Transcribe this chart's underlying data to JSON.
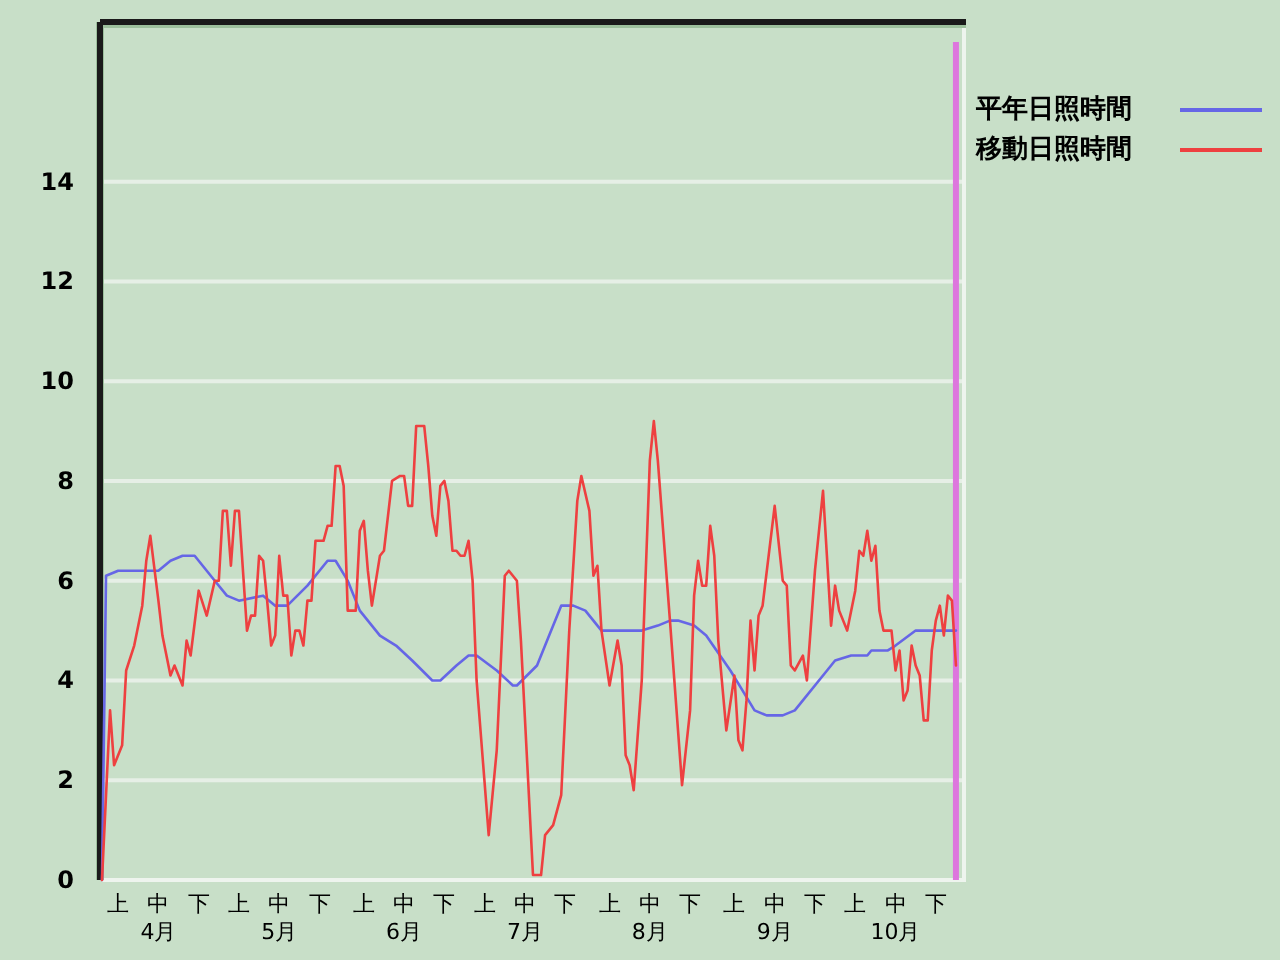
{
  "chart_data": {
    "type": "line",
    "series": [
      {
        "name": "平年日照時間",
        "color": "#6666e6",
        "x": [
          "--03-31",
          "--04-01",
          "--04-04",
          "--04-14",
          "--04-17",
          "--04-20",
          "--04-23",
          "--04-28",
          "--05-01",
          "--05-04",
          "--05-10",
          "--05-13",
          "--05-16",
          "--05-21",
          "--05-26",
          "--05-28",
          "--05-31",
          "--06-03",
          "--06-06",
          "--06-08",
          "--06-12",
          "--06-16",
          "--06-21",
          "--06-23",
          "--06-27",
          "--06-30",
          "--07-02",
          "--07-07",
          "--07-11",
          "--07-12",
          "--07-17",
          "--07-20",
          "--07-23",
          "--07-26",
          "--07-29",
          "--08-02",
          "--08-12",
          "--08-16",
          "--08-19",
          "--08-21",
          "--08-25",
          "--08-28",
          "--09-03",
          "--09-06",
          "--09-09",
          "--09-12",
          "--09-16",
          "--09-19",
          "--09-27",
          "--09-29",
          "--10-03",
          "--10-07",
          "--10-08",
          "--10-12",
          "--10-14",
          "--10-19",
          "--10-29"
        ],
        "values": [
          0,
          6.1,
          6.2,
          6.2,
          6.4,
          6.5,
          6.5,
          6.0,
          5.7,
          5.6,
          5.7,
          5.5,
          5.5,
          5.9,
          6.4,
          6.4,
          6.0,
          5.4,
          5.1,
          4.9,
          4.7,
          4.4,
          4.0,
          4.0,
          4.3,
          4.5,
          4.5,
          4.2,
          3.9,
          3.9,
          4.3,
          4.9,
          5.5,
          5.5,
          5.4,
          5.0,
          5.0,
          5.1,
          5.2,
          5.2,
          5.1,
          4.9,
          4.2,
          3.8,
          3.4,
          3.3,
          3.3,
          3.4,
          4.2,
          4.4,
          4.5,
          4.5,
          4.6,
          4.6,
          4.7,
          5.0,
          5.0
        ]
      },
      {
        "name": "移動日照時間",
        "color": "#ee4040",
        "x": [
          "--03-31",
          "--04-02",
          "--04-03",
          "--04-05",
          "--04-06",
          "--04-08",
          "--04-10",
          "--04-11",
          "--04-12",
          "--04-14",
          "--04-15",
          "--04-17",
          "--04-18",
          "--04-20",
          "--04-21",
          "--04-22",
          "--04-24",
          "--04-26",
          "--04-28",
          "--04-29",
          "--04-30",
          "--05-01",
          "--05-02",
          "--05-03",
          "--05-04",
          "--05-06",
          "--05-07",
          "--05-08",
          "--05-09",
          "--05-10",
          "--05-11",
          "--05-12",
          "--05-13",
          "--05-14",
          "--05-15",
          "--05-16",
          "--05-17",
          "--05-18",
          "--05-19",
          "--05-20",
          "--05-21",
          "--05-22",
          "--05-23",
          "--05-25",
          "--05-26",
          "--05-27",
          "--05-28",
          "--05-29",
          "--05-30",
          "--05-31",
          "--06-02",
          "--06-03",
          "--06-04",
          "--06-05",
          "--06-06",
          "--06-08",
          "--06-09",
          "--06-11",
          "--06-13",
          "--06-14",
          "--06-15",
          "--06-16",
          "--06-17",
          "--06-19",
          "--06-20",
          "--06-21",
          "--06-22",
          "--06-23",
          "--06-24",
          "--06-25",
          "--06-26",
          "--06-27",
          "--06-28",
          "--06-29",
          "--06-30",
          "--07-01",
          "--07-02",
          "--07-05",
          "--07-07",
          "--07-09",
          "--07-10",
          "--07-11",
          "--07-12",
          "--07-13",
          "--07-16",
          "--07-18",
          "--07-19",
          "--07-21",
          "--07-23",
          "--07-25",
          "--07-27",
          "--07-28",
          "--07-30",
          "--07-31",
          "--08-01",
          "--08-02",
          "--08-04",
          "--08-06",
          "--08-07",
          "--08-08",
          "--08-09",
          "--08-10",
          "--08-12",
          "--08-14",
          "--08-15",
          "--08-16",
          "--08-19",
          "--08-22",
          "--08-24",
          "--08-25",
          "--08-26",
          "--08-27",
          "--08-28",
          "--08-29",
          "--08-30",
          "--08-31",
          "--09-02",
          "--09-04",
          "--09-05",
          "--09-06",
          "--09-07",
          "--09-08",
          "--09-09",
          "--09-10",
          "--09-11",
          "--09-14",
          "--09-16",
          "--09-17",
          "--09-18",
          "--09-19",
          "--09-21",
          "--09-22",
          "--09-24",
          "--09-26",
          "--09-28",
          "--09-29",
          "--09-30",
          "--10-02",
          "--10-04",
          "--10-05",
          "--10-06",
          "--10-07",
          "--10-08",
          "--10-09",
          "--10-10",
          "--10-11",
          "--10-13",
          "--10-14",
          "--10-15",
          "--10-16",
          "--10-17",
          "--10-18",
          "--10-19",
          "--10-20",
          "--10-21",
          "--10-22",
          "--10-23",
          "--10-24",
          "--10-25",
          "--10-26",
          "--10-27",
          "--10-28",
          "--10-29"
        ],
        "values": [
          0,
          3.4,
          2.3,
          2.7,
          4.2,
          4.7,
          5.5,
          6.4,
          6.9,
          5.6,
          4.9,
          4.1,
          4.3,
          3.9,
          4.8,
          4.5,
          5.8,
          5.3,
          6.0,
          6.0,
          7.4,
          7.4,
          6.3,
          7.4,
          7.4,
          5.0,
          5.3,
          5.3,
          6.5,
          6.4,
          5.6,
          4.7,
          4.9,
          6.5,
          5.7,
          5.7,
          4.5,
          5.0,
          5.0,
          4.7,
          5.6,
          5.6,
          6.8,
          6.8,
          7.1,
          7.1,
          8.3,
          8.3,
          7.9,
          5.4,
          5.4,
          7.0,
          7.2,
          6.2,
          5.5,
          6.5,
          6.6,
          8.0,
          8.1,
          8.1,
          7.5,
          7.5,
          9.1,
          9.1,
          8.3,
          7.3,
          6.9,
          7.9,
          8.0,
          7.6,
          6.6,
          6.6,
          6.5,
          6.5,
          6.8,
          6.0,
          4.0,
          0.9,
          2.6,
          6.1,
          6.2,
          6.1,
          6.0,
          4.8,
          0.1,
          0.1,
          0.9,
          1.1,
          1.7,
          5.0,
          7.6,
          8.1,
          7.4,
          6.1,
          6.3,
          5.0,
          3.9,
          4.8,
          4.3,
          2.5,
          2.3,
          1.8,
          4.0,
          8.4,
          9.2,
          8.4,
          5.2,
          1.9,
          3.4,
          5.7,
          6.4,
          5.9,
          5.9,
          7.1,
          6.5,
          4.8,
          3.0,
          4.1,
          2.8,
          2.6,
          3.6,
          5.2,
          4.2,
          5.3,
          5.5,
          7.5,
          6.0,
          5.9,
          4.3,
          4.2,
          4.5,
          4.0,
          6.2,
          7.8,
          5.1,
          5.9,
          5.4,
          5.0,
          5.8,
          6.6,
          6.5,
          7.0,
          6.4,
          6.7,
          5.4,
          5.0,
          5.0,
          4.2,
          4.6,
          3.6,
          3.8,
          4.7,
          4.3,
          4.1,
          3.2,
          3.2,
          4.6,
          5.2,
          5.5,
          4.9,
          5.7,
          5.6,
          4.3
        ]
      }
    ],
    "xlim": [
      "--03-31",
      "--10-31"
    ],
    "xticks": [
      {
        "value": "--04-04",
        "label": "上"
      },
      {
        "value": "--04-14",
        "label": "中\n4月"
      },
      {
        "value": "--04-24",
        "label": "下"
      },
      {
        "value": "--05-04",
        "label": "上"
      },
      {
        "value": "--05-14",
        "label": "中\n5月"
      },
      {
        "value": "--05-24",
        "label": "下"
      },
      {
        "value": "--06-04",
        "label": "上"
      },
      {
        "value": "--06-14",
        "label": "中\n6月"
      },
      {
        "value": "--06-24",
        "label": "下"
      },
      {
        "value": "--07-04",
        "label": "上"
      },
      {
        "value": "--07-14",
        "label": "中\n7月"
      },
      {
        "value": "--07-24",
        "label": "下"
      },
      {
        "value": "--08-04",
        "label": "上"
      },
      {
        "value": "--08-14",
        "label": "中\n8月"
      },
      {
        "value": "--08-24",
        "label": "下"
      },
      {
        "value": "--09-04",
        "label": "上"
      },
      {
        "value": "--09-14",
        "label": "中\n9月"
      },
      {
        "value": "--09-24",
        "label": "下"
      },
      {
        "value": "--10-04",
        "label": "上"
      },
      {
        "value": "--10-14",
        "label": "中\n10月"
      },
      {
        "value": "--10-24",
        "label": "下"
      }
    ],
    "ylim": [
      0,
      17.2
    ],
    "yticks": [
      0,
      2,
      4,
      6,
      8,
      10,
      12,
      14
    ],
    "grid": "y",
    "legend": "top right",
    "ref_lines": [
      {
        "axis": "x",
        "value": "--10-29",
        "color": "#dd77dd"
      }
    ]
  }
}
